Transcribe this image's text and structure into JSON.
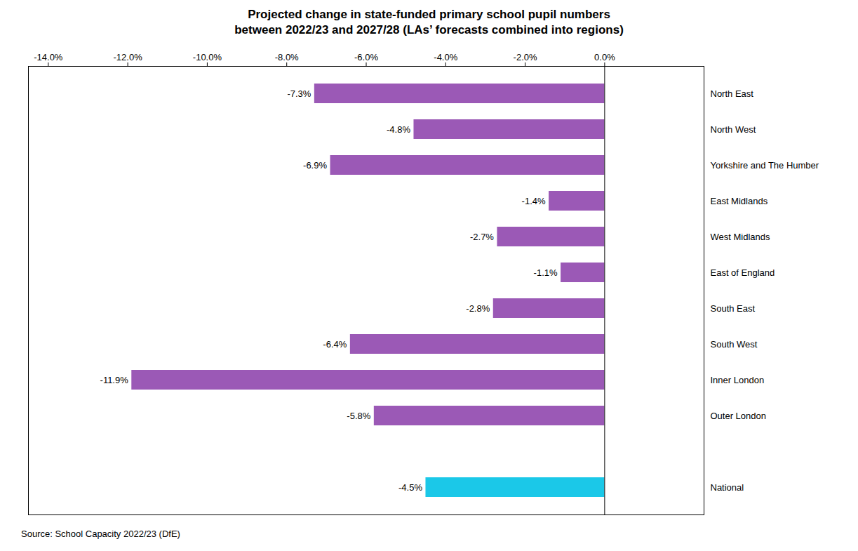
{
  "chart_data": {
    "type": "bar",
    "orientation": "horizontal",
    "title": "Projected change in state-funded primary school pupil numbers\nbetween 2022/23 and 2027/28 (LAs’ forecasts combined into regions)",
    "categories": [
      "North East",
      "North West",
      "Yorkshire and The Humber",
      "East Midlands",
      "West Midlands",
      "East of England",
      "South East",
      "South West",
      "Inner London",
      "Outer London",
      null,
      "National"
    ],
    "values": [
      -7.3,
      -4.8,
      -6.9,
      -1.4,
      -2.7,
      -1.1,
      -2.8,
      -6.4,
      -11.9,
      -5.8,
      null,
      -4.5
    ],
    "value_labels": [
      "-7.3%",
      "-4.8%",
      "-6.9%",
      "-1.4%",
      "-2.7%",
      "-1.1%",
      "-2.8%",
      "-6.4%",
      "-11.9%",
      "-5.8%",
      null,
      "-4.5%"
    ],
    "colors": [
      "#9B59B6",
      "#9B59B6",
      "#9B59B6",
      "#9B59B6",
      "#9B59B6",
      "#9B59B6",
      "#9B59B6",
      "#9B59B6",
      "#9B59B6",
      "#9B59B6",
      null,
      "#1BC8E8"
    ],
    "xlim": [
      -14.5,
      2.5
    ],
    "xticks": [
      {
        "value": -14,
        "label": "-14.0%"
      },
      {
        "value": -12,
        "label": "-12.0%"
      },
      {
        "value": -10,
        "label": "-10.0%"
      },
      {
        "value": -8,
        "label": "-8.0%"
      },
      {
        "value": -6,
        "label": "-6.0%"
      },
      {
        "value": -4,
        "label": "-4.0%"
      },
      {
        "value": -2,
        "label": "-2.0%"
      },
      {
        "value": 0,
        "label": "0.0%"
      }
    ],
    "data_labels": true,
    "grid": false,
    "annotations": [
      "Source: School Capacity 2022/23 (DfE)"
    ]
  }
}
